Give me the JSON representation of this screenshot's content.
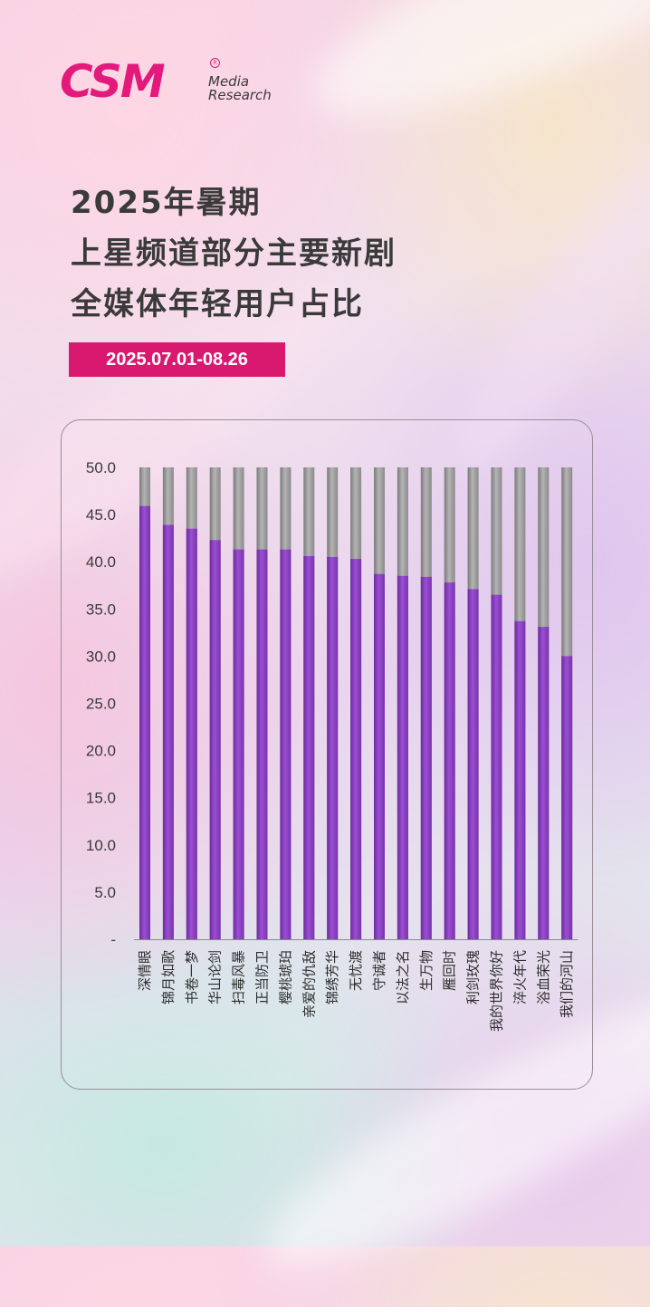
{
  "logo": {
    "brand": "CSM",
    "registered": "R",
    "line1": "Media",
    "line2": "Research"
  },
  "title": {
    "line1": "2025年暑期",
    "line2": "上星频道部分主要新剧",
    "line3": "全媒体年轻用户占比"
  },
  "date_range": "2025.07.01-08.26",
  "colors": {
    "accent": "#d9186f",
    "bar": "#8e3fc3",
    "bar_background": "#9c9c9c"
  },
  "chart_data": {
    "type": "bar",
    "orientation": "vertical",
    "title": "",
    "xlabel": "",
    "ylabel": "",
    "ylim": [
      0,
      50
    ],
    "yticks": [
      {
        "value": 0,
        "label": "-"
      },
      {
        "value": 5,
        "label": "5.0"
      },
      {
        "value": 10,
        "label": "10.0"
      },
      {
        "value": 15,
        "label": "15.0"
      },
      {
        "value": 20,
        "label": "20.0"
      },
      {
        "value": 25,
        "label": "25.0"
      },
      {
        "value": 30,
        "label": "30.0"
      },
      {
        "value": 35,
        "label": "35.0"
      },
      {
        "value": 40,
        "label": "40.0"
      },
      {
        "value": 45,
        "label": "45.0"
      },
      {
        "value": 50,
        "label": "50.0"
      }
    ],
    "grid": false,
    "legend": "none",
    "background_bar_value": 50,
    "categories": [
      "深情眼",
      "锦月如歌",
      "书卷一梦",
      "华山论剑",
      "扫毒风暴",
      "正当防卫",
      "樱桃琥珀",
      "亲爱的仇敌",
      "锦绣芳华",
      "无忧渡",
      "守诚者",
      "以法之名",
      "生万物",
      "雁回时",
      "利剑玫瑰",
      "我的世界你好",
      "淬火年代",
      "浴血荣光",
      "我们的河山"
    ],
    "values": [
      45.9,
      43.9,
      43.5,
      42.3,
      41.3,
      41.3,
      41.3,
      40.6,
      40.5,
      40.3,
      38.7,
      38.5,
      38.4,
      37.8,
      37.1,
      36.5,
      33.7,
      33.1,
      30.0
    ]
  }
}
